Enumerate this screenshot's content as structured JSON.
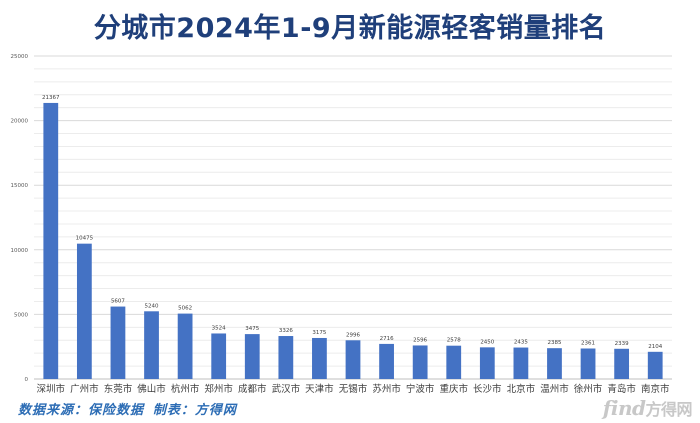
{
  "chart_data": {
    "type": "bar",
    "title": "分城市2024年1-9月新能源轻客销量排名",
    "categories": [
      "深圳市",
      "广州市",
      "东莞市",
      "佛山市",
      "杭州市",
      "郑州市",
      "成都市",
      "武汉市",
      "天津市",
      "无锡市",
      "苏州市",
      "宁波市",
      "重庆市",
      "长沙市",
      "北京市",
      "温州市",
      "徐州市",
      "青岛市",
      "南京市"
    ],
    "values": [
      21367,
      10475,
      5607,
      5240,
      5062,
      3524,
      3475,
      3326,
      3175,
      2996,
      2716,
      2596,
      2578,
      2450,
      2435,
      2385,
      2361,
      2339,
      2104
    ],
    "ylim": [
      0,
      25000
    ],
    "yticks": [
      0,
      5000,
      10000,
      15000,
      20000,
      25000
    ],
    "grid": true,
    "bar_color": "#4472c4"
  },
  "source_note": "数据来源：保险数据 制表：方得网",
  "watermark": {
    "main": "find",
    "tail": "方得网"
  }
}
